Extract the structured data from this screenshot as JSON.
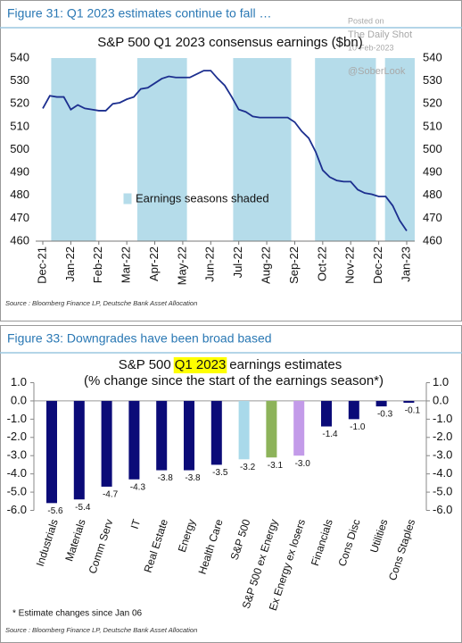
{
  "chart_data": [
    {
      "type": "line",
      "figure_label": "Figure 31: Q1 2023 estimates continue to fall …",
      "title": "S&P 500 Q1 2023 consensus earnings ($bn)",
      "annotation": "Earnings seasons shaded",
      "watermark": [
        "Posted on",
        "The Daily Shot",
        "10-Feb-2023",
        "@SoberLook"
      ],
      "source": "Source : Bloomberg Finance LP, Deutsche Bank Asset Allocation",
      "categories": [
        "Dec-21",
        null,
        null,
        null,
        "Jan-22",
        null,
        null,
        null,
        "Feb-22",
        null,
        null,
        null,
        "Mar-22",
        null,
        null,
        null,
        "Apr-22",
        null,
        null,
        null,
        "May-22",
        null,
        null,
        null,
        "Jun-22",
        null,
        null,
        null,
        "Jul-22",
        null,
        null,
        null,
        "Aug-22",
        null,
        null,
        null,
        "Sep-22",
        null,
        null,
        null,
        "Oct-22",
        null,
        null,
        null,
        "Nov-22",
        null,
        null,
        null,
        "Dec-22",
        null,
        null,
        null,
        "Jan-23"
      ],
      "values": [
        518,
        523.5,
        523,
        523,
        517.5,
        519.5,
        518,
        517.5,
        517,
        517,
        520,
        520.5,
        522,
        523,
        526.5,
        527,
        529,
        531,
        532,
        531.5,
        531.5,
        531.5,
        533,
        534.5,
        534.5,
        531,
        528,
        523,
        517.5,
        516.5,
        514.5,
        514,
        514,
        514,
        514,
        514,
        512,
        508,
        505,
        499,
        491,
        488,
        486.5,
        486,
        486,
        482.5,
        481,
        480.5,
        479.5,
        479.5,
        475.5,
        469,
        464.5
      ],
      "color": "#1c2f8f",
      "shade_color": "#b5dcea",
      "ylim": [
        460,
        540
      ],
      "yticks": [
        460,
        470,
        480,
        490,
        500,
        510,
        520,
        530,
        540
      ],
      "y2lim": [
        460,
        540
      ],
      "y2ticks": [
        460,
        470,
        480,
        490,
        500,
        510,
        520,
        530,
        540
      ]
    },
    {
      "type": "bar",
      "figure_label": "Figure 33: Downgrades have been broad based",
      "title": [
        "S&P 500",
        "Q1 2023",
        "earnings estimates"
      ],
      "subtitle": "(% change since the start of the earnings season*)",
      "footnote": "* Estimate changes since Jan 06",
      "source": "Source : Bloomberg Finance LP, Deutsche Bank Asset Allocation",
      "highlight_color": "#ffff00",
      "categories": [
        "Industrials",
        "Materials",
        "Comm Serv",
        "IT",
        "Real Estate",
        "Energy",
        "Health Care",
        "S&P 500",
        "S&P 500 ex Energy",
        "Ex Energy ex losers",
        "Financials",
        "Cons Disc",
        "Utilities",
        "Cons Staples"
      ],
      "values": [
        -5.6,
        -5.4,
        -4.7,
        -4.3,
        -3.8,
        -3.8,
        -3.5,
        -3.2,
        -3.1,
        -3.0,
        -1.4,
        -1.0,
        -0.3,
        -0.1
      ],
      "value_labels": [
        "-5.6",
        "-5.4",
        "-4.7",
        "-4.3",
        "-3.8",
        "-3.8",
        "-3.5",
        "-3.2",
        "-3.1",
        "-3.0",
        "-1.4",
        "-1.0",
        "-0.3",
        "-0.1"
      ],
      "colors": [
        "#0b0b78",
        "#0b0b78",
        "#0b0b78",
        "#0b0b78",
        "#0b0b78",
        "#0b0b78",
        "#0b0b78",
        "#a9d9ea",
        "#8db35a",
        "#c39be9",
        "#0b0b78",
        "#0b0b78",
        "#0b0b78",
        "#0b0b78"
      ],
      "ylim": [
        -6,
        1
      ],
      "yticks": [
        {
          "value": 1,
          "label": "1.0"
        },
        {
          "value": 0,
          "label": "0.0"
        },
        {
          "value": -1,
          "label": "-1.0"
        },
        {
          "value": -2,
          "label": "-2.0"
        },
        {
          "value": -3,
          "label": "-3.0"
        },
        {
          "value": -4,
          "label": "-4.0"
        },
        {
          "value": -5,
          "label": "-5.0"
        },
        {
          "value": -6,
          "label": "-6.0"
        }
      ],
      "y2lim": [
        -6,
        1
      ],
      "y2ticks": [
        {
          "value": 1,
          "label": "1.0"
        },
        {
          "value": 0,
          "label": "0.0"
        },
        {
          "value": -1,
          "label": "-1.0"
        },
        {
          "value": -2,
          "label": "-2.0"
        },
        {
          "value": -3,
          "label": "-3.0"
        },
        {
          "value": -4,
          "label": "-4.0"
        },
        {
          "value": -5,
          "label": "-5.0"
        },
        {
          "value": -6,
          "label": "-6.0"
        }
      ]
    }
  ]
}
